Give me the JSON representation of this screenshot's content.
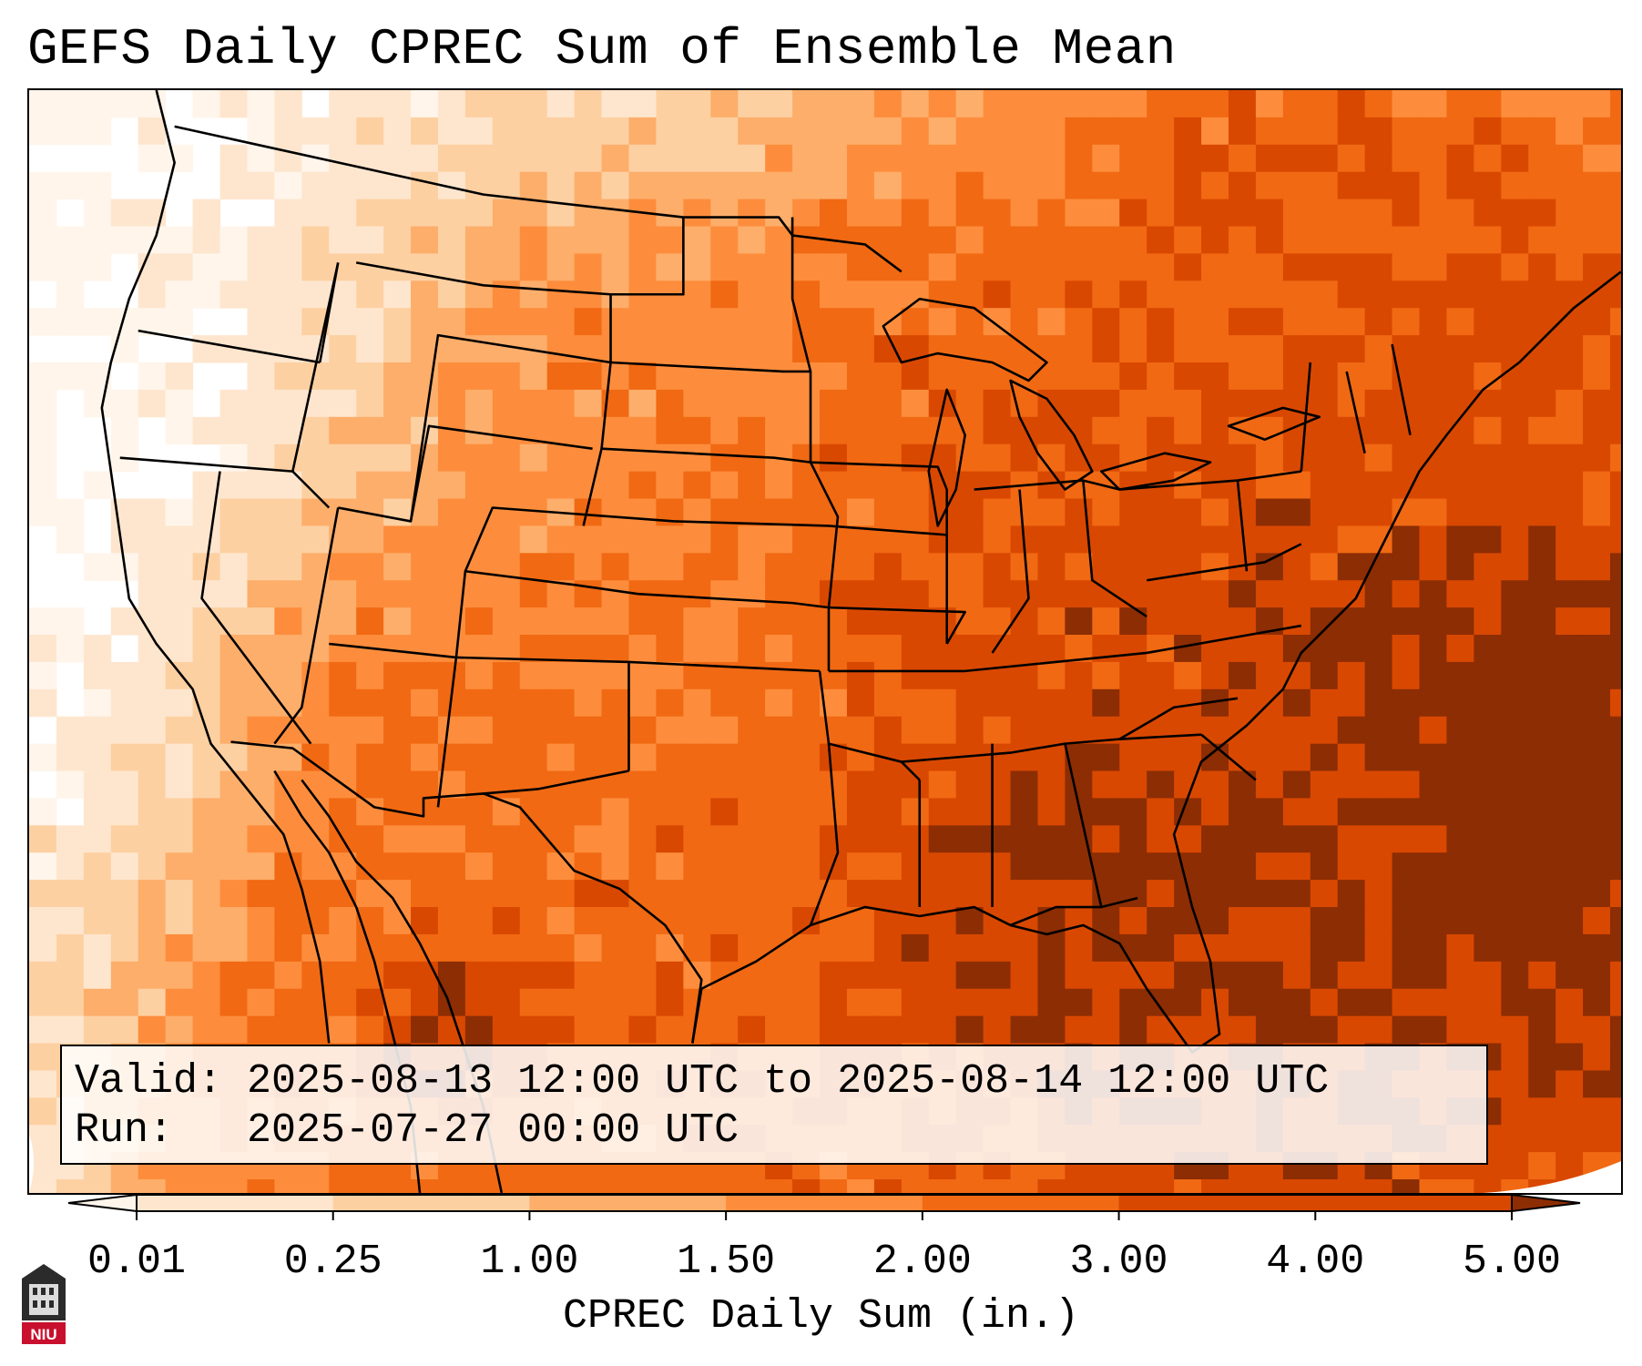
{
  "title": "GEFS Daily CPREC Sum of Ensemble Mean",
  "info": {
    "valid_label": "Valid:",
    "valid_value": "2025-08-13 12:00 UTC to 2025-08-14 12:00 UTC",
    "run_label": "Run:",
    "run_value": "2025-07-27 00:00 UTC"
  },
  "colorbar": {
    "label": "CPREC Daily Sum (in.)",
    "ticks": [
      "0.01",
      "0.25",
      "1.00",
      "1.50",
      "2.00",
      "3.00",
      "4.00",
      "5.00"
    ],
    "colors": [
      "#fff5eb",
      "#fee6ce",
      "#fdd0a2",
      "#fdae6b",
      "#fd8d3c",
      "#f16913",
      "#d94801",
      "#8c2d04"
    ],
    "extend": "both"
  },
  "logo": {
    "text": "NIU",
    "color": "#c8102e"
  }
}
